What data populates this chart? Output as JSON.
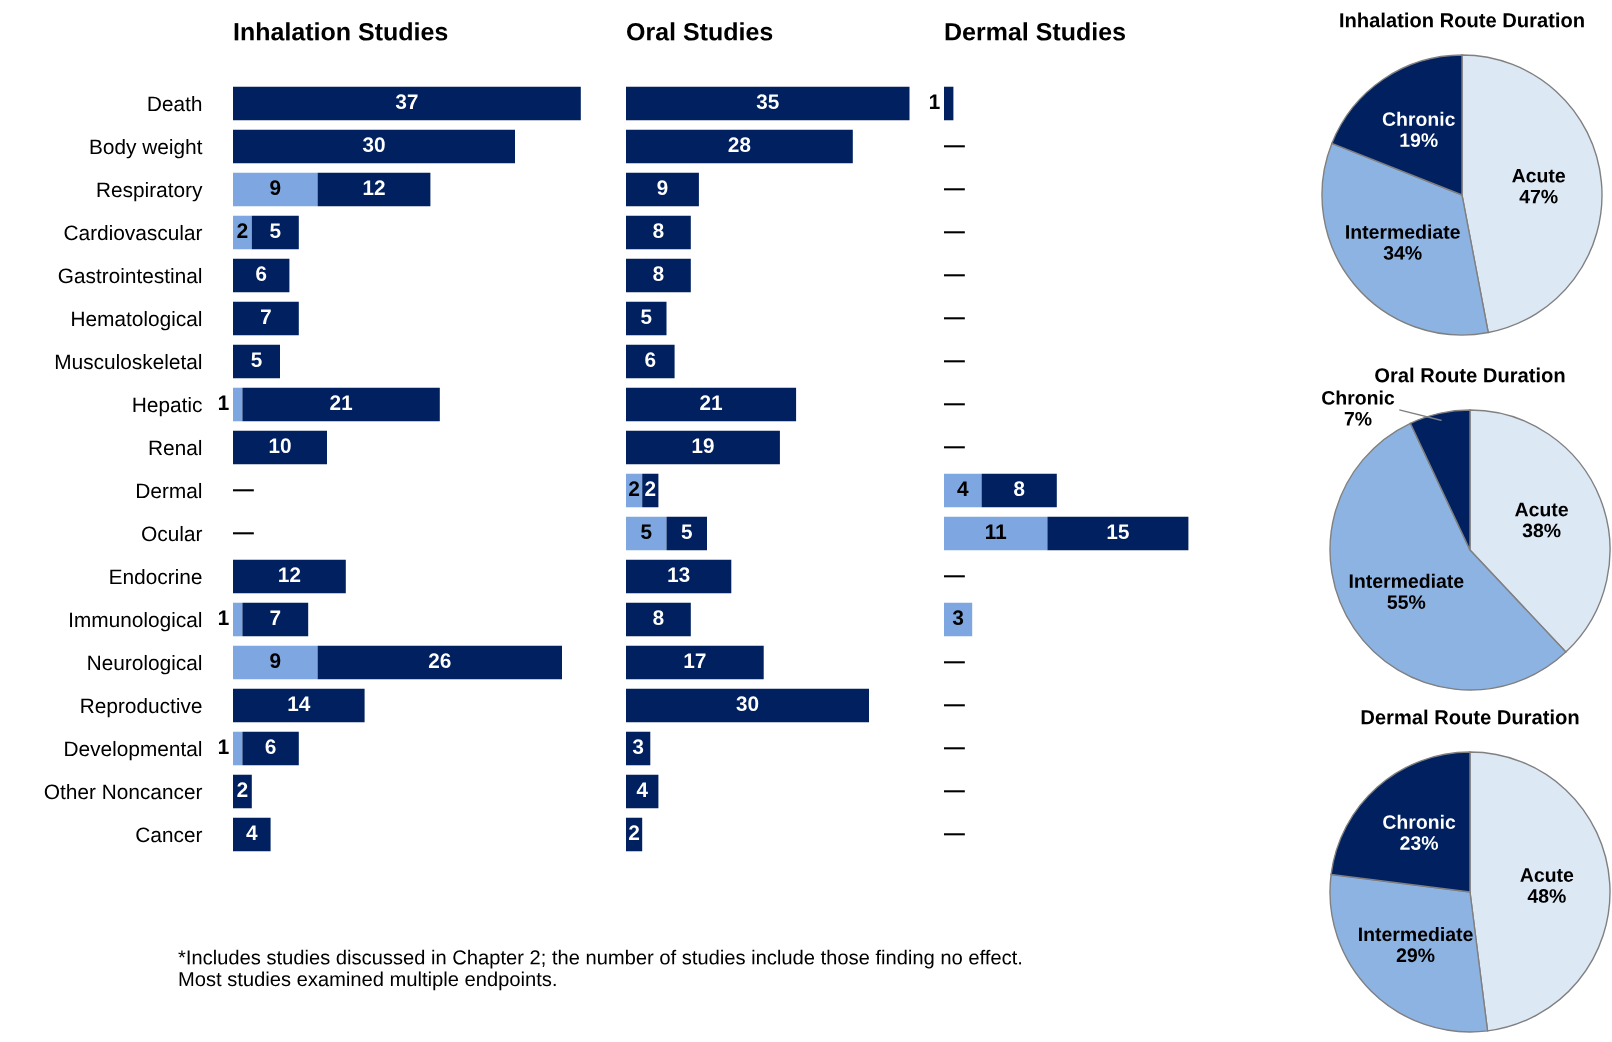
{
  "chart_data": [
    {
      "type": "bar",
      "orientation": "horizontal",
      "stacked": true,
      "title": "Inhalation Studies",
      "tick_labels": "y",
      "categories": [
        "Death",
        "Body weight",
        "Respiratory",
        "Cardiovascular",
        "Gastrointestinal",
        "Hematological",
        "Musculoskeletal",
        "Hepatic",
        "Renal",
        "Dermal",
        "Ocular",
        "Endocrine",
        "Immunological",
        "Neurological",
        "Reproductive",
        "Developmental",
        "Other Noncancer",
        "Cancer"
      ],
      "series": [
        {
          "color": "#7ea6e0",
          "values": [
            null,
            null,
            9,
            2,
            null,
            null,
            null,
            1,
            null,
            null,
            null,
            null,
            1,
            9,
            null,
            1,
            null,
            null
          ],
          "value_labels": [
            null,
            null,
            "9",
            "2",
            null,
            null,
            null,
            "1",
            null,
            null,
            null,
            null,
            "1",
            "9",
            null,
            "1",
            null,
            null
          ]
        },
        {
          "color": "#002060",
          "values": [
            37,
            30,
            12,
            5,
            6,
            7,
            5,
            21,
            10,
            0,
            0,
            12,
            7,
            26,
            14,
            6,
            2,
            4
          ],
          "value_labels": [
            "37",
            "30",
            "12",
            "5",
            "6",
            "7",
            "5",
            "21",
            "10",
            "—",
            "—",
            "12",
            "7",
            "26",
            "14",
            "6",
            "2",
            "4"
          ]
        }
      ],
      "annotations": [
        "*Includes studies discussed in Chapter 2; the number of studies include those finding no effect.\nMost studies examined multiple endpoints."
      ]
    },
    {
      "type": "bar",
      "orientation": "horizontal",
      "stacked": true,
      "title": "Oral Studies",
      "tick_labels": false,
      "series": [
        {
          "color": "#7ea6e0",
          "values": [
            null,
            null,
            null,
            null,
            null,
            null,
            null,
            null,
            null,
            2,
            5,
            null,
            null,
            null,
            null,
            null,
            null,
            null
          ],
          "value_labels": [
            null,
            null,
            null,
            null,
            null,
            null,
            null,
            null,
            null,
            "2",
            "5",
            null,
            null,
            null,
            null,
            null,
            null,
            null
          ]
        },
        {
          "color": "#002060",
          "values": [
            35,
            28,
            9,
            8,
            8,
            5,
            6,
            21,
            19,
            2,
            5,
            13,
            8,
            17,
            30,
            3,
            4,
            2
          ],
          "value_labels": [
            "35",
            "28",
            "9",
            "8",
            "8",
            "5",
            "6",
            "21",
            "19",
            "2",
            "5",
            "13",
            "8",
            "17",
            "30",
            "3",
            "4",
            "2"
          ]
        }
      ]
    },
    {
      "type": "bar",
      "orientation": "horizontal",
      "stacked": true,
      "title": "Dermal Studies",
      "tick_labels": false,
      "series": [
        {
          "color": "#7ea6e0",
          "values": [
            null,
            null,
            null,
            null,
            null,
            null,
            null,
            null,
            null,
            4,
            11,
            null,
            3,
            null,
            null,
            null,
            null,
            null
          ],
          "value_labels": [
            null,
            null,
            null,
            null,
            null,
            null,
            null,
            null,
            null,
            "4",
            "11",
            null,
            "3",
            null,
            null,
            null,
            null,
            null
          ]
        },
        {
          "color": "#002060",
          "values": [
            1,
            0,
            0,
            0,
            0,
            0,
            0,
            0,
            0,
            8,
            15,
            0,
            null,
            0,
            0,
            0,
            0,
            0
          ],
          "value_labels": [
            "1",
            "—",
            "—",
            "—",
            "—",
            "—",
            "—",
            "—",
            "—",
            "8",
            "15",
            "—",
            null,
            "—",
            "—",
            "—",
            "—",
            "—"
          ]
        }
      ]
    },
    {
      "type": "pie",
      "title": "Inhalation Route Duration",
      "categories": [
        "Acute",
        "Intermediate",
        "Chronic"
      ],
      "values": [
        47,
        34,
        19
      ],
      "value_labels": [
        "47%",
        "34%",
        "19%"
      ],
      "colors": [
        "#dde8f5",
        "#8db3e2",
        "#002060"
      ]
    },
    {
      "type": "pie",
      "title": "Oral Route Duration",
      "categories": [
        "Acute",
        "Intermediate",
        "Chronic"
      ],
      "values": [
        38,
        55,
        7
      ],
      "value_labels": [
        "38%",
        "55%",
        "7%"
      ],
      "colors": [
        "#dde8f5",
        "#8db3e2",
        "#002060"
      ]
    },
    {
      "type": "pie",
      "title": "Dermal Route Duration",
      "categories": [
        "Acute",
        "Intermediate",
        "Chronic"
      ],
      "values": [
        48,
        29,
        23
      ],
      "value_labels": [
        "48%",
        "29%",
        "23%"
      ],
      "colors": [
        "#dde8f5",
        "#8db3e2",
        "#002060"
      ]
    }
  ]
}
